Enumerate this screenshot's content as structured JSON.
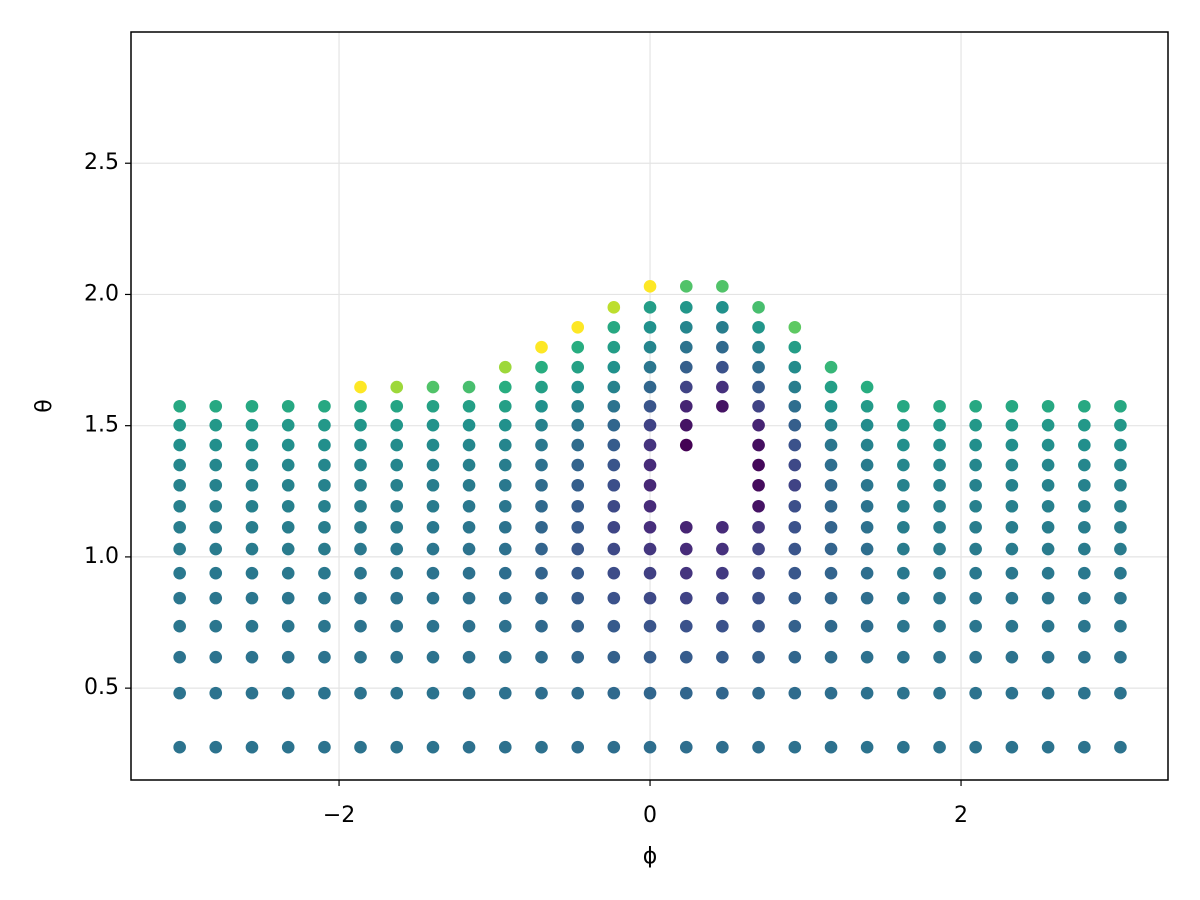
{
  "chart_data": {
    "type": "scatter",
    "xlabel": "ϕ",
    "ylabel": "θ",
    "xlim": [
      -3.338,
      3.331
    ],
    "ylim": [
      0.15,
      3.0
    ],
    "xticks": [
      {
        "value": -2,
        "label": "−2"
      },
      0,
      2
    ],
    "yticks": [
      0.5,
      {
        "value": 1.0,
        "label": "1.0"
      },
      1.5,
      {
        "value": 2.0,
        "label": "2.0"
      },
      2.5
    ],
    "grid": true,
    "colormap": [
      "#440154",
      "#472d7b",
      "#3b528b",
      "#2c728e",
      "#21918c",
      "#28ae80",
      "#5ec962",
      "#addc30",
      "#fde725"
    ],
    "columns": [
      {
        "x": -3.025,
        "y": [
          0.275,
          0.481,
          0.618,
          0.736,
          0.843,
          0.938,
          1.03,
          1.113,
          1.193,
          1.273,
          1.35,
          1.426,
          1.502,
          1.574
        ],
        "c": [
          0.38,
          0.38,
          0.38,
          0.39,
          0.39,
          0.4,
          0.41,
          0.42,
          0.43,
          0.44,
          0.46,
          0.49,
          0.53,
          0.6
        ]
      },
      {
        "x": -2.793,
        "y": [
          0.275,
          0.481,
          0.618,
          0.736,
          0.843,
          0.938,
          1.03,
          1.113,
          1.193,
          1.273,
          1.35,
          1.426,
          1.502,
          1.574
        ],
        "c": [
          0.38,
          0.38,
          0.38,
          0.39,
          0.39,
          0.4,
          0.41,
          0.42,
          0.43,
          0.44,
          0.46,
          0.49,
          0.53,
          0.6
        ]
      },
      {
        "x": -2.56,
        "y": [
          0.275,
          0.481,
          0.618,
          0.736,
          0.843,
          0.938,
          1.03,
          1.113,
          1.193,
          1.273,
          1.35,
          1.426,
          1.502,
          1.574
        ],
        "c": [
          0.38,
          0.38,
          0.38,
          0.39,
          0.39,
          0.4,
          0.41,
          0.42,
          0.43,
          0.44,
          0.46,
          0.49,
          0.53,
          0.6
        ]
      },
      {
        "x": -2.327,
        "y": [
          0.275,
          0.481,
          0.618,
          0.736,
          0.843,
          0.938,
          1.03,
          1.113,
          1.193,
          1.273,
          1.35,
          1.426,
          1.502,
          1.574
        ],
        "c": [
          0.38,
          0.38,
          0.38,
          0.39,
          0.39,
          0.4,
          0.41,
          0.42,
          0.43,
          0.44,
          0.46,
          0.49,
          0.53,
          0.6
        ]
      },
      {
        "x": -2.094,
        "y": [
          0.275,
          0.481,
          0.618,
          0.736,
          0.843,
          0.938,
          1.03,
          1.113,
          1.193,
          1.273,
          1.35,
          1.426,
          1.502,
          1.574
        ],
        "c": [
          0.38,
          0.38,
          0.38,
          0.39,
          0.39,
          0.4,
          0.41,
          0.42,
          0.43,
          0.44,
          0.46,
          0.49,
          0.53,
          0.6
        ]
      },
      {
        "x": -1.862,
        "y": [
          0.275,
          0.481,
          0.618,
          0.736,
          0.843,
          0.938,
          1.03,
          1.113,
          1.193,
          1.273,
          1.35,
          1.426,
          1.502,
          1.574,
          1.647
        ],
        "c": [
          0.38,
          0.38,
          0.38,
          0.38,
          0.38,
          0.39,
          0.4,
          0.41,
          0.42,
          0.43,
          0.45,
          0.48,
          0.52,
          0.58,
          1.0
        ]
      },
      {
        "x": -1.629,
        "y": [
          0.275,
          0.481,
          0.618,
          0.736,
          0.843,
          0.938,
          1.03,
          1.113,
          1.193,
          1.273,
          1.35,
          1.426,
          1.502,
          1.574,
          1.647
        ],
        "c": [
          0.38,
          0.38,
          0.38,
          0.38,
          0.38,
          0.39,
          0.4,
          0.41,
          0.42,
          0.43,
          0.45,
          0.48,
          0.52,
          0.58,
          0.85
        ]
      },
      {
        "x": -1.396,
        "y": [
          0.275,
          0.481,
          0.618,
          0.736,
          0.843,
          0.938,
          1.03,
          1.113,
          1.193,
          1.273,
          1.35,
          1.426,
          1.502,
          1.574,
          1.647
        ],
        "c": [
          0.38,
          0.38,
          0.38,
          0.38,
          0.38,
          0.38,
          0.39,
          0.4,
          0.41,
          0.42,
          0.44,
          0.47,
          0.51,
          0.57,
          0.72
        ]
      },
      {
        "x": -1.164,
        "y": [
          0.275,
          0.481,
          0.618,
          0.736,
          0.843,
          0.938,
          1.03,
          1.113,
          1.193,
          1.273,
          1.35,
          1.426,
          1.502,
          1.574,
          1.647
        ],
        "c": [
          0.37,
          0.37,
          0.37,
          0.37,
          0.37,
          0.37,
          0.38,
          0.39,
          0.4,
          0.41,
          0.43,
          0.46,
          0.5,
          0.56,
          0.7
        ]
      },
      {
        "x": -0.931,
        "y": [
          0.275,
          0.481,
          0.618,
          0.736,
          0.843,
          0.938,
          1.03,
          1.113,
          1.193,
          1.273,
          1.35,
          1.426,
          1.502,
          1.574,
          1.647,
          1.723
        ],
        "c": [
          0.37,
          0.37,
          0.37,
          0.37,
          0.36,
          0.36,
          0.37,
          0.38,
          0.39,
          0.4,
          0.42,
          0.45,
          0.5,
          0.56,
          0.62,
          0.85
        ]
      },
      {
        "x": -0.698,
        "y": [
          0.275,
          0.481,
          0.618,
          0.736,
          0.843,
          0.938,
          1.03,
          1.113,
          1.193,
          1.273,
          1.35,
          1.426,
          1.502,
          1.574,
          1.647,
          1.723,
          1.799
        ],
        "c": [
          0.37,
          0.36,
          0.35,
          0.34,
          0.33,
          0.32,
          0.32,
          0.33,
          0.34,
          0.35,
          0.37,
          0.4,
          0.44,
          0.5,
          0.56,
          0.62,
          1.0
        ]
      },
      {
        "x": -0.465,
        "y": [
          0.275,
          0.481,
          0.618,
          0.736,
          0.843,
          0.938,
          1.03,
          1.113,
          1.193,
          1.273,
          1.35,
          1.426,
          1.502,
          1.574,
          1.647,
          1.723,
          1.799,
          1.875
        ],
        "c": [
          0.36,
          0.35,
          0.33,
          0.31,
          0.29,
          0.28,
          0.27,
          0.28,
          0.29,
          0.3,
          0.32,
          0.35,
          0.39,
          0.44,
          0.5,
          0.57,
          0.62,
          1.0
        ]
      },
      {
        "x": -0.233,
        "y": [
          0.275,
          0.481,
          0.618,
          0.736,
          0.843,
          0.938,
          1.03,
          1.113,
          1.193,
          1.273,
          1.35,
          1.426,
          1.502,
          1.574,
          1.647,
          1.723,
          1.799,
          1.875,
          1.951
        ],
        "c": [
          0.36,
          0.34,
          0.31,
          0.28,
          0.25,
          0.23,
          0.22,
          0.21,
          0.22,
          0.24,
          0.26,
          0.29,
          0.33,
          0.38,
          0.44,
          0.5,
          0.55,
          0.6,
          0.9
        ]
      },
      {
        "x": 0,
        "y": [
          0.275,
          0.481,
          0.618,
          0.736,
          0.843,
          0.938,
          1.03,
          1.113,
          1.193,
          1.273,
          1.35,
          1.426,
          1.502,
          1.574,
          1.647,
          1.723,
          1.799,
          1.875,
          1.951,
          2.031
        ],
        "c": [
          0.36,
          0.33,
          0.29,
          0.26,
          0.22,
          0.19,
          0.16,
          0.13,
          0.12,
          0.11,
          0.12,
          0.15,
          0.2,
          0.26,
          0.33,
          0.39,
          0.45,
          0.5,
          0.55,
          1.0
        ]
      },
      {
        "x": 0.233,
        "y": [
          0.275,
          0.481,
          0.618,
          0.736,
          0.843,
          0.938,
          1.03,
          1.113,
          1.426,
          1.502,
          1.574,
          1.647,
          1.723,
          1.799,
          1.875,
          1.951,
          2.031
        ],
        "c": [
          0.36,
          0.33,
          0.29,
          0.25,
          0.2,
          0.15,
          0.12,
          0.1,
          0.0,
          0.05,
          0.1,
          0.2,
          0.3,
          0.38,
          0.45,
          0.52,
          0.72
        ]
      },
      {
        "x": 0.465,
        "y": [
          0.275,
          0.481,
          0.618,
          0.736,
          0.843,
          0.938,
          1.03,
          1.113,
          1.574,
          1.647,
          1.723,
          1.799,
          1.875,
          1.951,
          2.031
        ],
        "c": [
          0.36,
          0.33,
          0.29,
          0.25,
          0.21,
          0.17,
          0.14,
          0.12,
          0.05,
          0.14,
          0.25,
          0.34,
          0.42,
          0.5,
          0.72
        ]
      },
      {
        "x": 0.698,
        "y": [
          0.275,
          0.481,
          0.618,
          0.736,
          0.843,
          0.938,
          1.03,
          1.113,
          1.193,
          1.273,
          1.35,
          1.426,
          1.502,
          1.574,
          1.647,
          1.723,
          1.799,
          1.875,
          1.951
        ],
        "c": [
          0.36,
          0.34,
          0.3,
          0.27,
          0.24,
          0.22,
          0.2,
          0.16,
          0.05,
          0.03,
          0.02,
          0.04,
          0.1,
          0.2,
          0.28,
          0.36,
          0.44,
          0.52,
          0.7
        ]
      },
      {
        "x": 0.931,
        "y": [
          0.275,
          0.481,
          0.618,
          0.736,
          0.843,
          0.938,
          1.03,
          1.113,
          1.193,
          1.273,
          1.35,
          1.426,
          1.502,
          1.574,
          1.647,
          1.723,
          1.799,
          1.875
        ],
        "c": [
          0.37,
          0.35,
          0.33,
          0.31,
          0.29,
          0.27,
          0.26,
          0.25,
          0.24,
          0.2,
          0.22,
          0.25,
          0.3,
          0.36,
          0.42,
          0.48,
          0.55,
          0.75
        ]
      },
      {
        "x": 1.164,
        "y": [
          0.275,
          0.481,
          0.618,
          0.736,
          0.843,
          0.938,
          1.03,
          1.113,
          1.193,
          1.273,
          1.35,
          1.426,
          1.502,
          1.574,
          1.647,
          1.723
        ],
        "c": [
          0.37,
          0.36,
          0.35,
          0.34,
          0.33,
          0.32,
          0.32,
          0.32,
          0.33,
          0.34,
          0.36,
          0.39,
          0.44,
          0.5,
          0.56,
          0.66
        ]
      },
      {
        "x": 1.396,
        "y": [
          0.275,
          0.481,
          0.618,
          0.736,
          0.843,
          0.938,
          1.03,
          1.113,
          1.193,
          1.273,
          1.35,
          1.426,
          1.502,
          1.574,
          1.647
        ],
        "c": [
          0.38,
          0.37,
          0.37,
          0.36,
          0.36,
          0.36,
          0.36,
          0.37,
          0.38,
          0.39,
          0.41,
          0.44,
          0.48,
          0.54,
          0.62
        ]
      },
      {
        "x": 1.629,
        "y": [
          0.275,
          0.481,
          0.618,
          0.736,
          0.843,
          0.938,
          1.03,
          1.113,
          1.193,
          1.273,
          1.35,
          1.426,
          1.502,
          1.574
        ],
        "c": [
          0.38,
          0.38,
          0.38,
          0.39,
          0.39,
          0.4,
          0.41,
          0.42,
          0.43,
          0.44,
          0.46,
          0.49,
          0.53,
          0.6
        ]
      },
      {
        "x": 1.862,
        "y": [
          0.275,
          0.481,
          0.618,
          0.736,
          0.843,
          0.938,
          1.03,
          1.113,
          1.193,
          1.273,
          1.35,
          1.426,
          1.502,
          1.574
        ],
        "c": [
          0.38,
          0.38,
          0.38,
          0.39,
          0.39,
          0.4,
          0.41,
          0.42,
          0.43,
          0.44,
          0.46,
          0.49,
          0.53,
          0.6
        ]
      },
      {
        "x": 2.094,
        "y": [
          0.275,
          0.481,
          0.618,
          0.736,
          0.843,
          0.938,
          1.03,
          1.113,
          1.193,
          1.273,
          1.35,
          1.426,
          1.502,
          1.574
        ],
        "c": [
          0.38,
          0.38,
          0.38,
          0.39,
          0.39,
          0.4,
          0.41,
          0.42,
          0.43,
          0.44,
          0.46,
          0.49,
          0.53,
          0.6
        ]
      },
      {
        "x": 2.327,
        "y": [
          0.275,
          0.481,
          0.618,
          0.736,
          0.843,
          0.938,
          1.03,
          1.113,
          1.193,
          1.273,
          1.35,
          1.426,
          1.502,
          1.574
        ],
        "c": [
          0.38,
          0.38,
          0.38,
          0.39,
          0.39,
          0.4,
          0.41,
          0.42,
          0.43,
          0.44,
          0.46,
          0.49,
          0.53,
          0.6
        ]
      },
      {
        "x": 2.56,
        "y": [
          0.275,
          0.481,
          0.618,
          0.736,
          0.843,
          0.938,
          1.03,
          1.113,
          1.193,
          1.273,
          1.35,
          1.426,
          1.502,
          1.574
        ],
        "c": [
          0.38,
          0.38,
          0.38,
          0.39,
          0.39,
          0.4,
          0.41,
          0.42,
          0.43,
          0.44,
          0.46,
          0.49,
          0.53,
          0.6
        ]
      },
      {
        "x": 2.793,
        "y": [
          0.275,
          0.481,
          0.618,
          0.736,
          0.843,
          0.938,
          1.03,
          1.113,
          1.193,
          1.273,
          1.35,
          1.426,
          1.502,
          1.574
        ],
        "c": [
          0.38,
          0.38,
          0.38,
          0.39,
          0.39,
          0.4,
          0.41,
          0.42,
          0.43,
          0.44,
          0.46,
          0.49,
          0.53,
          0.6
        ]
      },
      {
        "x": 3.025,
        "y": [
          0.275,
          0.481,
          0.618,
          0.736,
          0.843,
          0.938,
          1.03,
          1.113,
          1.193,
          1.273,
          1.35,
          1.426,
          1.502,
          1.574
        ],
        "c": [
          0.38,
          0.38,
          0.38,
          0.39,
          0.39,
          0.4,
          0.41,
          0.42,
          0.43,
          0.44,
          0.46,
          0.49,
          0.53,
          0.6
        ]
      }
    ]
  }
}
